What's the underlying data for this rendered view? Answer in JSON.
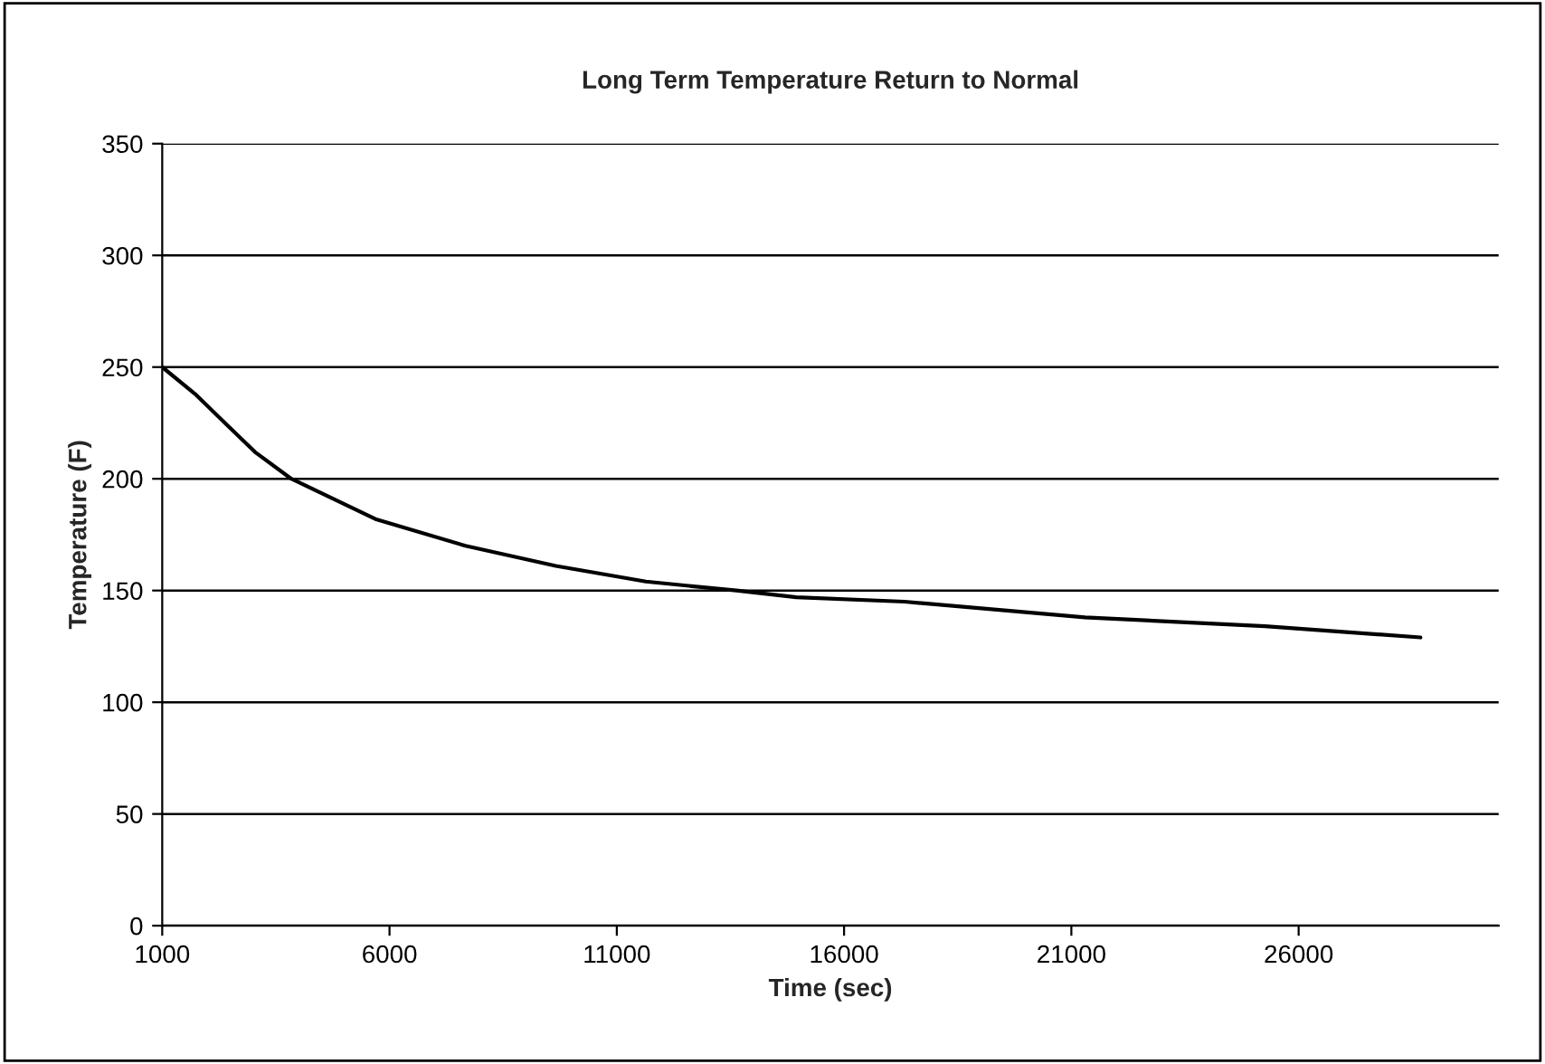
{
  "chart_data": {
    "type": "line",
    "title": "Long Term Temperature Return to Normal",
    "xlabel": "Time (sec)",
    "ylabel": "Temperature (F)",
    "x": [
      1000,
      1720,
      3040,
      3840,
      5690,
      7670,
      9660,
      11640,
      13630,
      14950,
      17330,
      21300,
      25260,
      28680
    ],
    "series": [
      {
        "color": "#000000",
        "values": [
          250,
          238,
          212,
          200,
          182,
          170,
          161,
          154,
          150,
          147,
          145,
          138,
          134,
          129
        ]
      }
    ],
    "xlim": [
      1000,
      30400
    ],
    "xticks": [
      1000,
      6000,
      11000,
      16000,
      21000,
      26000
    ],
    "ylim": [
      0,
      350
    ],
    "yticks": [
      0,
      50,
      100,
      150,
      200,
      250,
      300,
      350
    ],
    "grid": "y",
    "legend": false,
    "marker": "none",
    "line_style": "solid"
  }
}
